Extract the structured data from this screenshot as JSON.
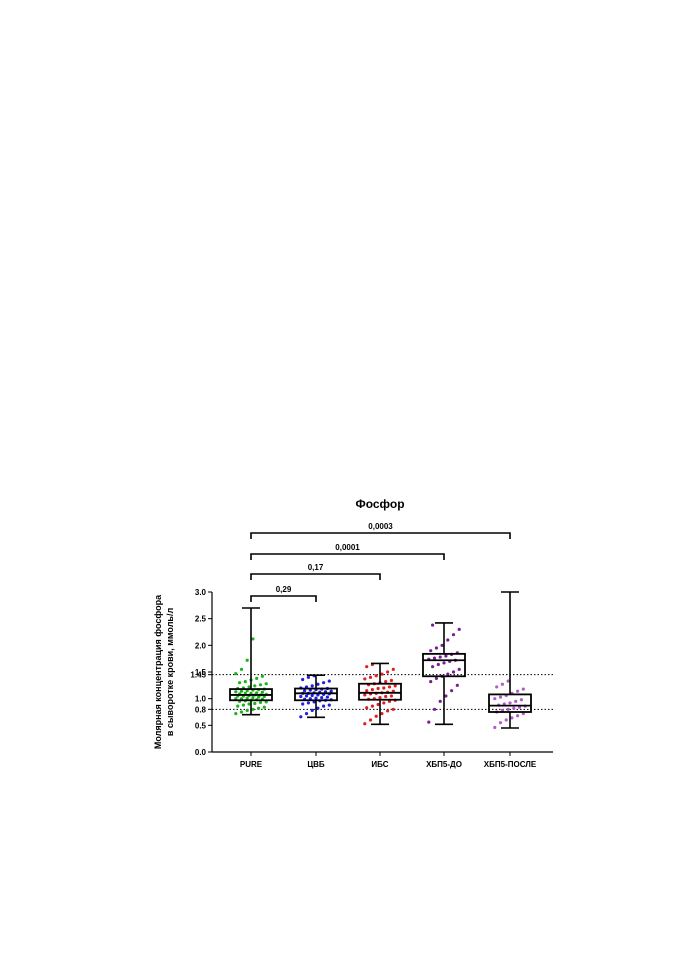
{
  "chart_data": {
    "type": "box",
    "title": "Фосфор",
    "ylabel_line1": "Молярная концентрация фосфора",
    "ylabel_line2": "в сыворотке крови, ммоль/л",
    "ylim": [
      0,
      3.0
    ],
    "y_ticks": [
      "0.0",
      "0.5",
      "0.8",
      "1.0",
      "1.45",
      "1.5",
      "2.0",
      "2.5",
      "3.0"
    ],
    "reference_lines": [
      0.8,
      1.45
    ],
    "grid": false,
    "categories": [
      "PURE",
      "ЦВБ",
      "ИБС",
      "ХБП5-ДО",
      "ХБП5-ПОСЛЕ"
    ],
    "series": [
      {
        "color": "#1fb21f",
        "stats": {
          "min": 0.7,
          "q1": 0.97,
          "median": 1.07,
          "q3": 1.18,
          "max": 2.7
        },
        "points": [
          0.72,
          0.75,
          0.78,
          0.8,
          0.82,
          0.84,
          0.86,
          0.88,
          0.9,
          0.91,
          0.93,
          0.94,
          0.95,
          0.96,
          0.97,
          0.98,
          0.99,
          1.0,
          1.0,
          1.01,
          1.02,
          1.03,
          1.04,
          1.05,
          1.05,
          1.06,
          1.07,
          1.07,
          1.08,
          1.09,
          1.1,
          1.1,
          1.11,
          1.12,
          1.13,
          1.14,
          1.15,
          1.16,
          1.17,
          1.18,
          1.19,
          1.2,
          1.22,
          1.24,
          1.26,
          1.28,
          1.3,
          1.32,
          1.35,
          1.38,
          1.42,
          1.47,
          1.55,
          1.72,
          2.12
        ]
      },
      {
        "color": "#1f1fe6",
        "stats": {
          "min": 0.65,
          "q1": 0.97,
          "median": 1.1,
          "q3": 1.19,
          "max": 1.44
        },
        "points": [
          0.66,
          0.72,
          0.78,
          0.82,
          0.86,
          0.88,
          0.9,
          0.92,
          0.94,
          0.96,
          0.97,
          0.98,
          0.99,
          1.0,
          1.01,
          1.02,
          1.03,
          1.04,
          1.05,
          1.06,
          1.07,
          1.08,
          1.09,
          1.1,
          1.1,
          1.11,
          1.12,
          1.13,
          1.14,
          1.15,
          1.16,
          1.17,
          1.18,
          1.19,
          1.2,
          1.22,
          1.24,
          1.27,
          1.3,
          1.33,
          1.36,
          1.4,
          1.43
        ]
      },
      {
        "color": "#e01f1f",
        "stats": {
          "min": 0.52,
          "q1": 0.98,
          "median": 1.11,
          "q3": 1.28,
          "max": 1.66
        },
        "points": [
          0.53,
          0.6,
          0.67,
          0.72,
          0.77,
          0.8,
          0.83,
          0.86,
          0.89,
          0.92,
          0.95,
          0.97,
          0.99,
          1.0,
          1.02,
          1.04,
          1.05,
          1.07,
          1.09,
          1.1,
          1.11,
          1.12,
          1.14,
          1.15,
          1.17,
          1.19,
          1.2,
          1.22,
          1.24,
          1.26,
          1.28,
          1.3,
          1.32,
          1.34,
          1.37,
          1.4,
          1.43,
          1.46,
          1.5,
          1.55,
          1.6,
          1.64
        ]
      },
      {
        "color": "#7a1f8f",
        "stats": {
          "min": 0.52,
          "q1": 1.42,
          "median": 1.72,
          "q3": 1.84,
          "max": 2.42
        },
        "points": [
          0.56,
          0.8,
          0.95,
          1.05,
          1.15,
          1.25,
          1.32,
          1.38,
          1.42,
          1.46,
          1.5,
          1.55,
          1.6,
          1.64,
          1.67,
          1.7,
          1.72,
          1.74,
          1.76,
          1.78,
          1.8,
          1.83,
          1.86,
          1.9,
          1.95,
          2.0,
          2.1,
          2.2,
          2.3,
          2.38
        ]
      },
      {
        "color": "#b35cc9",
        "stats": {
          "min": 0.45,
          "q1": 0.75,
          "median": 0.87,
          "q3": 1.08,
          "max": 3.0
        },
        "points": [
          0.46,
          0.55,
          0.6,
          0.64,
          0.68,
          0.72,
          0.75,
          0.78,
          0.8,
          0.82,
          0.84,
          0.86,
          0.88,
          0.9,
          0.92,
          0.95,
          0.98,
          1.0,
          1.03,
          1.06,
          1.1,
          1.14,
          1.18,
          1.22,
          1.27,
          1.33
        ]
      }
    ],
    "comparisons": [
      {
        "from": 0,
        "to": 1,
        "label": "0,29"
      },
      {
        "from": 0,
        "to": 2,
        "label": "0,17"
      },
      {
        "from": 0,
        "to": 3,
        "label": "0,0001"
      },
      {
        "from": 0,
        "to": 4,
        "label": "0,0003"
      }
    ]
  }
}
